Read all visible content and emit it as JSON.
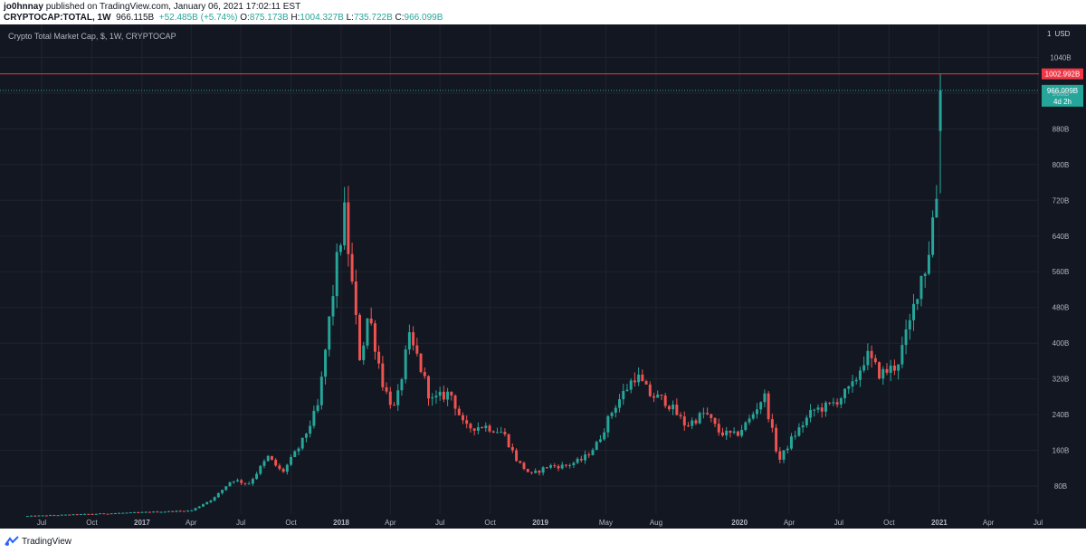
{
  "header": {
    "author": "jo0hnnay",
    "published_text": "published on TradingView.com, January 06, 2021 17:02:11 EST",
    "symbol": "CRYPTOCAP:TOTAL, 1W",
    "last": "966.115B",
    "change": "+52.485B (+5.74%)",
    "o_label": "O:",
    "o_value": "875.173B",
    "h_label": "H:",
    "h_value": "1004.327B",
    "l_label": "L:",
    "l_value": "735.722B",
    "c_label": "C:",
    "c_value": "966.099B"
  },
  "chart_title": "Crypto Total Market Cap, $, 1W, CRYPTOCAP",
  "scale": {
    "multiplier": "1",
    "currency": "USD"
  },
  "footer": {
    "brand": "TradingView"
  },
  "colors": {
    "up": "#26a69a",
    "down": "#ef5350",
    "background": "#131722",
    "grid": "#1f2430",
    "axis_text": "#b2b5be"
  },
  "chart_data": {
    "type": "candlestick",
    "interval": "1W",
    "unit": "billion USD",
    "x_range": [
      "2016-06",
      "2021-07"
    ],
    "ylim": [
      40,
      1080
    ],
    "y_ticks": [
      "80B",
      "160B",
      "240B",
      "320B",
      "400B",
      "480B",
      "560B",
      "640B",
      "720B",
      "800B",
      "880B",
      "960B",
      "1040B"
    ],
    "x_ticks": [
      "Jul",
      "Oct",
      "2017",
      "Apr",
      "Jul",
      "Oct",
      "2018",
      "Apr",
      "Jul",
      "Oct",
      "2019",
      "May",
      "Aug",
      "2020",
      "Apr",
      "Jul",
      "Oct",
      "2021",
      "Apr",
      "Jul"
    ],
    "x_tick_dates": [
      "2016-07-01",
      "2016-10-01",
      "2017-01-01",
      "2017-04-01",
      "2017-07-01",
      "2017-10-01",
      "2018-01-01",
      "2018-04-01",
      "2018-07-01",
      "2018-10-01",
      "2019-01-01",
      "2019-05-01",
      "2019-08-01",
      "2020-01-01",
      "2020-04-01",
      "2020-07-01",
      "2020-10-01",
      "2021-01-01",
      "2021-04-01",
      "2021-07-01"
    ],
    "horizontal_line": {
      "value": 1002.992,
      "label": "1002.992B",
      "color": "#f23645"
    },
    "last_price": {
      "value": 966.099,
      "label": "966.099B",
      "countdown": "4d 2h"
    },
    "anchors": [
      [
        "2017-04-01",
        25
      ],
      [
        "2017-05-15",
        55
      ],
      [
        "2017-06-15",
        95
      ],
      [
        "2017-07-15",
        85
      ],
      [
        "2017-08-20",
        145
      ],
      [
        "2017-09-15",
        110
      ],
      [
        "2017-10-20",
        175
      ],
      [
        "2017-11-20",
        260
      ],
      [
        "2017-12-10",
        450
      ],
      [
        "2017-12-25",
        590
      ],
      [
        "2018-01-07",
        690
      ],
      [
        "2018-01-20",
        540
      ],
      [
        "2018-02-05",
        360
      ],
      [
        "2018-02-20",
        470
      ],
      [
        "2018-03-20",
        300
      ],
      [
        "2018-04-10",
        250
      ],
      [
        "2018-05-05",
        410
      ],
      [
        "2018-05-20",
        370
      ],
      [
        "2018-06-15",
        270
      ],
      [
        "2018-07-20",
        290
      ],
      [
        "2018-08-15",
        210
      ],
      [
        "2018-09-20",
        215
      ],
      [
        "2018-10-25",
        200
      ],
      [
        "2018-11-20",
        135
      ],
      [
        "2018-12-15",
        105
      ],
      [
        "2019-01-15",
        125
      ],
      [
        "2019-02-15",
        125
      ],
      [
        "2019-03-20",
        140
      ],
      [
        "2019-04-15",
        175
      ],
      [
        "2019-05-15",
        255
      ],
      [
        "2019-06-25",
        330
      ],
      [
        "2019-07-20",
        285
      ],
      [
        "2019-08-20",
        270
      ],
      [
        "2019-09-25",
        215
      ],
      [
        "2019-10-30",
        245
      ],
      [
        "2019-11-25",
        200
      ],
      [
        "2019-12-25",
        193
      ],
      [
        "2020-01-20",
        230
      ],
      [
        "2020-02-15",
        285
      ],
      [
        "2020-03-13",
        135
      ],
      [
        "2020-04-05",
        185
      ],
      [
        "2020-05-15",
        250
      ],
      [
        "2020-06-15",
        260
      ],
      [
        "2020-07-25",
        300
      ],
      [
        "2020-08-20",
        375
      ],
      [
        "2020-09-15",
        330
      ],
      [
        "2020-10-15",
        350
      ],
      [
        "2020-11-10",
        450
      ],
      [
        "2020-11-25",
        540
      ],
      [
        "2020-12-10",
        580
      ],
      [
        "2020-12-20",
        680
      ],
      [
        "2020-12-27",
        730
      ],
      [
        "2021-01-03",
        966
      ]
    ]
  }
}
